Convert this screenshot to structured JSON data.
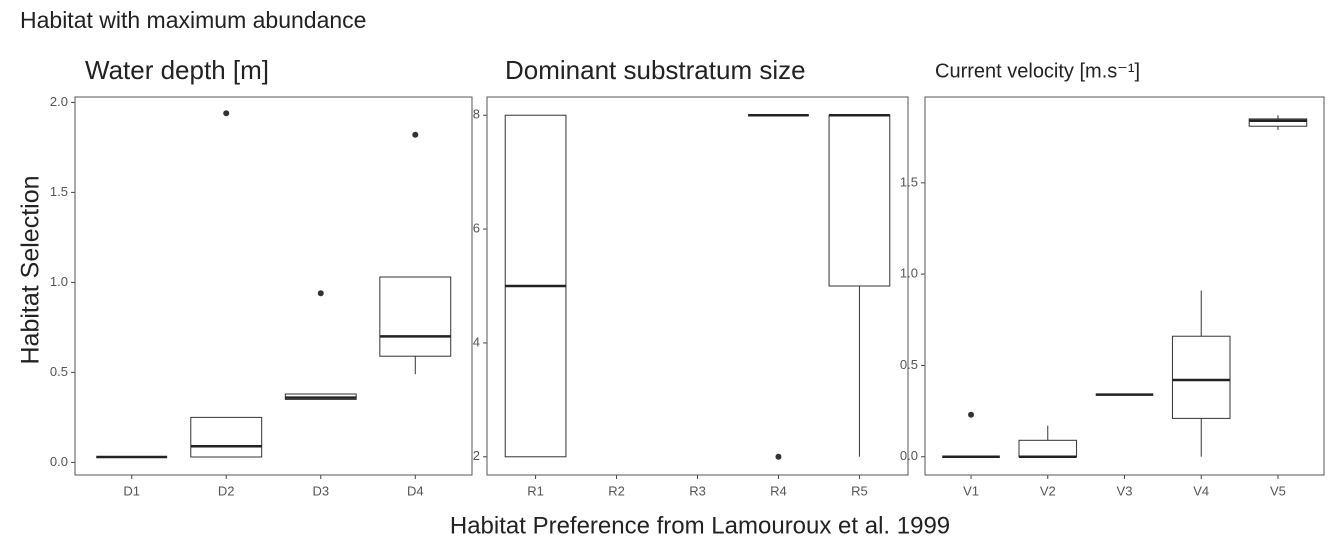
{
  "title": "Habitat with maximum abundance",
  "y_label": "Habitat Selection",
  "x_label": "Habitat Preference from Lamouroux et al. 1999",
  "chart_data": [
    {
      "type": "box",
      "title": "Water depth [m]",
      "categories": [
        "D1",
        "D2",
        "D3",
        "D4"
      ],
      "boxes": [
        {
          "whisker_low": 0.03,
          "q1": 0.03,
          "median": 0.03,
          "q3": 0.03,
          "whisker_high": 0.03,
          "outliers": []
        },
        {
          "whisker_low": 0.03,
          "q1": 0.03,
          "median": 0.09,
          "q3": 0.25,
          "whisker_high": 0.25,
          "outliers": [
            1.94
          ]
        },
        {
          "whisker_low": 0.35,
          "q1": 0.35,
          "median": 0.36,
          "q3": 0.38,
          "whisker_high": 0.38,
          "outliers": [
            0.94
          ]
        },
        {
          "whisker_low": 0.49,
          "q1": 0.59,
          "median": 0.7,
          "q3": 1.03,
          "whisker_high": 1.03,
          "outliers": [
            1.82
          ]
        }
      ],
      "ylim": [
        -0.07,
        2.03
      ],
      "yticks": [
        {
          "value": 0,
          "label": "0.0"
        },
        0.5,
        {
          "value": 1,
          "label": "1.0"
        },
        1.5,
        {
          "value": 2,
          "label": "2.0"
        }
      ]
    },
    {
      "type": "box",
      "title": "Dominant substratum size",
      "categories": [
        "R1",
        "R2",
        "R3",
        "R4",
        "R5"
      ],
      "boxes": [
        {
          "whisker_low": 2,
          "q1": 2,
          "median": 5,
          "q3": 8,
          "whisker_high": 8,
          "outliers": []
        },
        null,
        null,
        {
          "whisker_low": 8,
          "q1": 8,
          "median": 8,
          "q3": 8,
          "whisker_high": 8,
          "outliers": [
            2
          ]
        },
        {
          "whisker_low": 2,
          "q1": 5,
          "median": 8,
          "q3": 8,
          "whisker_high": 8,
          "outliers": []
        }
      ],
      "ylim": [
        1.68,
        8.32
      ],
      "yticks": [
        2,
        4,
        6,
        8
      ]
    },
    {
      "type": "box",
      "title": "Current velocity [m.s⁻¹]",
      "categories": [
        "V1",
        "V2",
        "V3",
        "V4",
        "V5"
      ],
      "boxes": [
        {
          "whisker_low": 0,
          "q1": 0,
          "median": 0,
          "q3": 0,
          "whisker_high": 0,
          "outliers": [
            0.23
          ]
        },
        {
          "whisker_low": 0,
          "q1": 0,
          "median": 0,
          "q3": 0.09,
          "whisker_high": 0.17,
          "outliers": []
        },
        {
          "whisker_low": 0.34,
          "q1": 0.34,
          "median": 0.34,
          "q3": 0.34,
          "whisker_high": 0.34,
          "outliers": []
        },
        {
          "whisker_low": 0,
          "q1": 0.21,
          "median": 0.42,
          "q3": 0.66,
          "whisker_high": 0.91,
          "outliers": []
        },
        {
          "whisker_low": 1.79,
          "q1": 1.81,
          "median": 1.84,
          "q3": 1.85,
          "whisker_high": 1.87,
          "outliers": []
        }
      ],
      "ylim": [
        -0.1,
        1.97
      ],
      "yticks": [
        {
          "value": 0,
          "label": "0.0"
        },
        0.5,
        {
          "value": 1,
          "label": "1.0"
        },
        1.5
      ]
    }
  ]
}
